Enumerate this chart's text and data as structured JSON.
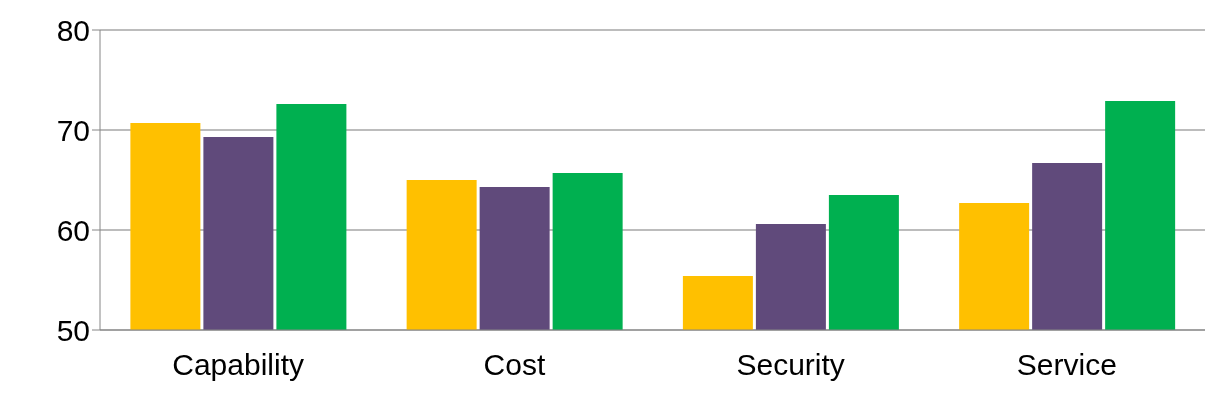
{
  "chart_data": {
    "type": "bar",
    "categories": [
      "Capability",
      "Cost",
      "Security",
      "Service"
    ],
    "series": [
      {
        "color": "#ffc000",
        "values": [
          70.7,
          65.0,
          55.4,
          62.7
        ]
      },
      {
        "color": "#604a7b",
        "values": [
          69.3,
          64.3,
          60.6,
          66.7
        ]
      },
      {
        "color": "#00b050",
        "values": [
          72.6,
          65.7,
          63.5,
          72.9
        ]
      }
    ],
    "ylim": [
      50,
      80
    ],
    "yticks": [
      50,
      60,
      70,
      80
    ],
    "grid": "y",
    "legend": false
  }
}
